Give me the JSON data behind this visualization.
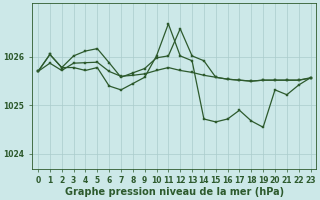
{
  "background_color": "#cce8e8",
  "grid_color": "#aacccc",
  "line_color": "#2d5a2d",
  "xlabel": "Graphe pression niveau de la mer (hPa)",
  "xlabel_fontsize": 7,
  "tick_fontsize": 5.5,
  "xlim": [
    -0.5,
    23.5
  ],
  "ylim": [
    1023.7,
    1027.1
  ],
  "yticks": [
    1024,
    1025,
    1026
  ],
  "xticks": [
    0,
    1,
    2,
    3,
    4,
    5,
    6,
    7,
    8,
    9,
    10,
    11,
    12,
    13,
    14,
    15,
    16,
    17,
    18,
    19,
    20,
    21,
    22,
    23
  ],
  "series1_x": [
    0,
    1,
    2,
    3,
    4,
    5,
    6,
    7,
    8,
    9,
    10,
    11,
    12,
    13,
    14,
    15,
    16,
    17,
    18,
    19,
    20,
    21,
    22,
    23
  ],
  "series1_y": [
    1025.7,
    1025.87,
    1025.72,
    1025.87,
    1025.88,
    1025.89,
    1025.7,
    1025.6,
    1025.62,
    1025.65,
    1025.72,
    1025.78,
    1025.72,
    1025.68,
    1025.62,
    1025.58,
    1025.54,
    1025.52,
    1025.5,
    1025.52,
    1025.52,
    1025.52,
    1025.52,
    1025.56
  ],
  "series2_x": [
    0,
    1,
    2,
    3,
    4,
    5,
    6,
    7,
    8,
    9,
    10,
    11,
    12,
    13,
    14,
    15,
    16,
    17,
    18,
    19,
    20,
    21,
    22,
    23
  ],
  "series2_y": [
    1025.7,
    1026.05,
    1025.78,
    1026.02,
    1026.12,
    1026.17,
    1025.88,
    1025.58,
    1025.67,
    1025.76,
    1025.98,
    1026.02,
    1026.58,
    1026.02,
    1025.92,
    1025.58,
    1025.54,
    1025.52,
    1025.5,
    1025.52,
    1025.52,
    1025.52,
    1025.52,
    1025.57
  ],
  "series3_x": [
    0,
    1,
    2,
    3,
    4,
    5,
    6,
    7,
    8,
    9,
    10,
    11,
    12,
    13,
    14,
    15,
    16,
    17,
    18,
    19,
    20,
    21,
    22,
    23
  ],
  "series3_y": [
    1025.7,
    1026.05,
    1025.78,
    1025.78,
    1025.72,
    1025.78,
    1025.4,
    1025.32,
    1025.45,
    1025.58,
    1026.02,
    1026.68,
    1026.02,
    1025.92,
    1024.72,
    1024.66,
    1024.72,
    1024.9,
    1024.68,
    1024.55,
    1025.32,
    1025.22,
    1025.42,
    1025.57
  ]
}
